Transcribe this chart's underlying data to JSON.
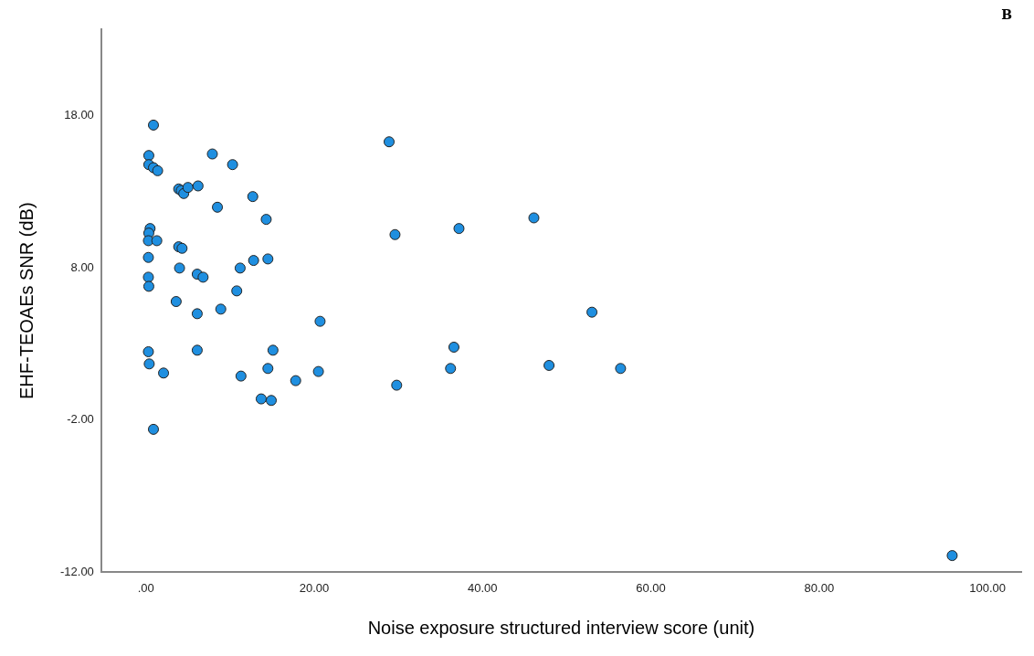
{
  "chart_data": {
    "type": "scatter",
    "xlabel": "Noise exposure structured interview score (unit)",
    "ylabel": "EHF-TEOAEs SNR (dB)",
    "annotations": [
      "B"
    ],
    "x": [
      0.9,
      0.35,
      0.35,
      0.9,
      1.4,
      7.9,
      10.3,
      3.9,
      4.2,
      4.5,
      5.0,
      6.2,
      12.7,
      8.5,
      14.3,
      28.9,
      29.6,
      0.5,
      0.35,
      0.3,
      1.3,
      3.9,
      4.3,
      0.3,
      4.0,
      12.8,
      14.5,
      11.2,
      6.1,
      6.8,
      0.3,
      0.35,
      10.8,
      3.6,
      8.9,
      6.1,
      20.7,
      0.3,
      0.4,
      2.1,
      6.1,
      15.1,
      14.5,
      11.3,
      17.8,
      20.5,
      13.7,
      14.9,
      29.8,
      0.9,
      37.2,
      46.1,
      53.0,
      36.6,
      36.2,
      47.9,
      56.4,
      95.8
    ],
    "series": [
      {
        "color": "#1f8fe0",
        "values": [
          17.4,
          15.4,
          14.8,
          14.6,
          14.4,
          15.5,
          14.8,
          13.2,
          13.1,
          12.9,
          13.3,
          13.4,
          12.7,
          12.0,
          11.2,
          16.3,
          10.2,
          10.6,
          10.3,
          9.8,
          9.8,
          9.4,
          9.3,
          8.7,
          8.0,
          8.5,
          8.6,
          8.0,
          7.6,
          7.4,
          7.4,
          6.8,
          6.5,
          5.8,
          5.3,
          5.0,
          4.5,
          2.5,
          1.7,
          1.1,
          2.6,
          2.6,
          1.4,
          0.9,
          0.6,
          1.2,
          -0.6,
          -0.7,
          0.3,
          -2.6,
          10.6,
          11.3,
          5.1,
          2.8,
          1.4,
          1.6,
          1.4,
          -10.9
        ]
      }
    ],
    "xlim": [
      -5.3,
      104
    ],
    "xticks": [
      {
        "value": 0,
        "label": ".00"
      },
      {
        "value": 20,
        "label": "20.00"
      },
      {
        "value": 40,
        "label": "40.00"
      },
      {
        "value": 60,
        "label": "60.00"
      },
      {
        "value": 80,
        "label": "80.00"
      },
      {
        "value": 100,
        "label": "100.00"
      }
    ],
    "ylim": [
      -12,
      23.7
    ],
    "yticks": [
      {
        "value": -12,
        "label": "-12.00"
      },
      {
        "value": -2,
        "label": "-2.00"
      },
      {
        "value": 8,
        "label": "8.00"
      },
      {
        "value": 18,
        "label": "18.00"
      }
    ],
    "grid": false,
    "legend": false,
    "marker": "circle"
  }
}
